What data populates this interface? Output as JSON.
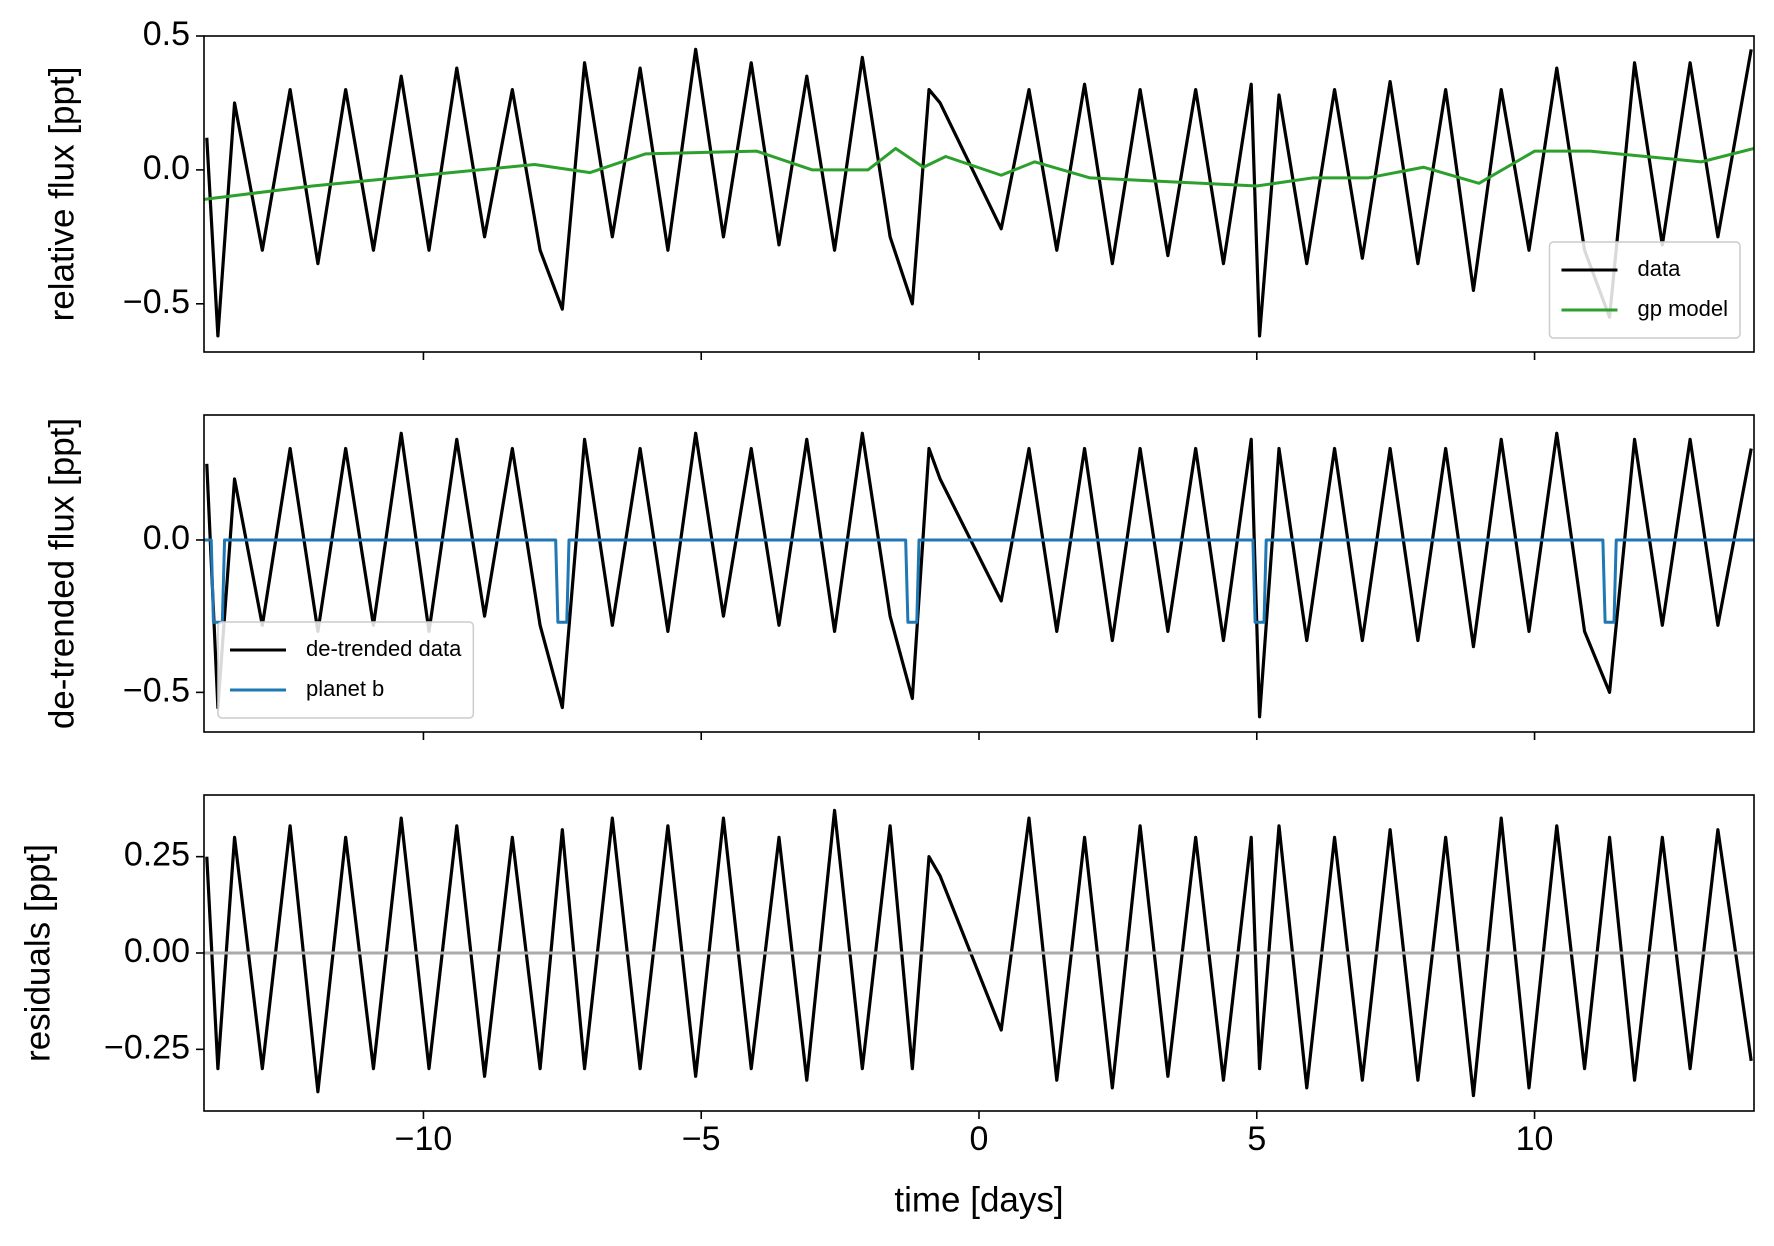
{
  "chart_data": [
    {
      "type": "line",
      "ylabel": "relative flux [ppt]",
      "xlim": [
        -13.95,
        13.95
      ],
      "ylim": [
        -0.68,
        0.5
      ],
      "yticks": [
        {
          "value": -0.5,
          "label": "−0.5"
        },
        {
          "value": 0,
          "label": "0.0"
        },
        0.5
      ],
      "legend": "lower right",
      "series": [
        {
          "name": "data",
          "color": "#000000",
          "x": [
            -13.9,
            -13.7,
            -13.4,
            -12.9,
            -12.4,
            -11.9,
            -11.4,
            -10.9,
            -10.4,
            -9.9,
            -9.4,
            -8.9,
            -8.4,
            -7.9,
            -7.5,
            -7.1,
            -6.6,
            -6.1,
            -5.6,
            -5.1,
            -4.6,
            -4.1,
            -3.6,
            -3.1,
            -2.6,
            -2.1,
            -1.6,
            -1.2,
            -0.9,
            -0.7,
            0.4,
            0.9,
            1.4,
            1.9,
            2.4,
            2.9,
            3.4,
            3.9,
            4.4,
            4.9,
            5.05,
            5.4,
            5.9,
            6.4,
            6.9,
            7.4,
            7.9,
            8.4,
            8.9,
            9.4,
            9.9,
            10.4,
            10.9,
            11.35,
            11.8,
            12.3,
            12.8,
            13.3,
            13.9
          ],
          "values": [
            0.12,
            -0.62,
            0.25,
            -0.3,
            0.3,
            -0.35,
            0.3,
            -0.3,
            0.35,
            -0.3,
            0.38,
            -0.25,
            0.3,
            -0.3,
            -0.52,
            0.4,
            -0.25,
            0.38,
            -0.3,
            0.45,
            -0.25,
            0.4,
            -0.28,
            0.35,
            -0.3,
            0.42,
            -0.25,
            -0.5,
            0.3,
            0.25,
            -0.22,
            0.3,
            -0.3,
            0.32,
            -0.35,
            0.3,
            -0.32,
            0.3,
            -0.35,
            0.32,
            -0.62,
            0.28,
            -0.35,
            0.3,
            -0.33,
            0.33,
            -0.35,
            0.3,
            -0.45,
            0.3,
            -0.3,
            0.38,
            -0.3,
            -0.55,
            0.4,
            -0.28,
            0.4,
            -0.25,
            0.45
          ]
        },
        {
          "name": "gp model",
          "color": "#2ca02c",
          "x": [
            -13.95,
            -12,
            -10,
            -8,
            -7,
            -6,
            -4,
            -3,
            -2,
            -1.5,
            -1,
            -0.6,
            0.4,
            1,
            2,
            4,
            5,
            6,
            7,
            8,
            9,
            10,
            11,
            12,
            13,
            13.95
          ],
          "values": [
            -0.11,
            -0.06,
            -0.02,
            0.02,
            -0.01,
            0.06,
            0.07,
            0.0,
            0.0,
            0.08,
            0.01,
            0.05,
            -0.02,
            0.03,
            -0.03,
            -0.05,
            -0.06,
            -0.03,
            -0.03,
            0.01,
            -0.05,
            0.07,
            0.07,
            0.05,
            0.03,
            0.08
          ]
        }
      ]
    },
    {
      "type": "line",
      "ylabel": "de-trended flux [ppt]",
      "xlim": [
        -13.95,
        13.95
      ],
      "ylim": [
        -0.63,
        0.41
      ],
      "yticks": [
        {
          "value": -0.5,
          "label": "−0.5"
        },
        {
          "value": 0,
          "label": "0.0"
        }
      ],
      "legend": "lower left",
      "series": [
        {
          "name": "de-trended data",
          "color": "#000000",
          "x": [
            -13.9,
            -13.7,
            -13.4,
            -12.9,
            -12.4,
            -11.9,
            -11.4,
            -10.9,
            -10.4,
            -9.9,
            -9.4,
            -8.9,
            -8.4,
            -7.9,
            -7.5,
            -7.1,
            -6.6,
            -6.1,
            -5.6,
            -5.1,
            -4.6,
            -4.1,
            -3.6,
            -3.1,
            -2.6,
            -2.1,
            -1.6,
            -1.2,
            -0.9,
            -0.7,
            0.4,
            0.9,
            1.4,
            1.9,
            2.4,
            2.9,
            3.4,
            3.9,
            4.4,
            4.9,
            5.05,
            5.4,
            5.9,
            6.4,
            6.9,
            7.4,
            7.9,
            8.4,
            8.9,
            9.4,
            9.9,
            10.4,
            10.9,
            11.35,
            11.8,
            12.3,
            12.8,
            13.3,
            13.9
          ],
          "values": [
            0.25,
            -0.55,
            0.2,
            -0.28,
            0.3,
            -0.3,
            0.3,
            -0.28,
            0.35,
            -0.3,
            0.33,
            -0.25,
            0.3,
            -0.28,
            -0.55,
            0.33,
            -0.28,
            0.3,
            -0.3,
            0.35,
            -0.25,
            0.3,
            -0.28,
            0.33,
            -0.3,
            0.35,
            -0.25,
            -0.52,
            0.3,
            0.2,
            -0.2,
            0.3,
            -0.3,
            0.3,
            -0.33,
            0.3,
            -0.3,
            0.3,
            -0.33,
            0.33,
            -0.58,
            0.3,
            -0.33,
            0.3,
            -0.33,
            0.3,
            -0.33,
            0.3,
            -0.35,
            0.33,
            -0.3,
            0.35,
            -0.3,
            -0.5,
            0.33,
            -0.28,
            0.33,
            -0.28,
            0.3
          ]
        },
        {
          "name": "planet b",
          "color": "#1f77b4",
          "x": [
            -13.95,
            -13.82,
            -13.78,
            -13.62,
            -13.58,
            -7.62,
            -7.58,
            -7.42,
            -7.38,
            -1.32,
            -1.28,
            -1.12,
            -1.08,
            4.93,
            4.97,
            5.13,
            5.17,
            11.23,
            11.27,
            11.43,
            11.47,
            13.95
          ],
          "values": [
            0,
            0,
            -0.27,
            -0.27,
            0,
            0,
            -0.27,
            -0.27,
            0,
            0,
            -0.27,
            -0.27,
            0,
            0,
            -0.27,
            -0.27,
            0,
            0,
            -0.27,
            -0.27,
            0,
            0
          ]
        }
      ]
    },
    {
      "type": "line",
      "ylabel": "residuals [ppt]",
      "xlabel": "time [days]",
      "xlim": [
        -13.95,
        13.95
      ],
      "ylim": [
        -0.41,
        0.41
      ],
      "yticks": [
        {
          "value": -0.25,
          "label": "−0.25"
        },
        {
          "value": 0,
          "label": "0.00"
        },
        {
          "value": 0.25,
          "label": "0.25"
        }
      ],
      "xticks": [
        {
          "value": -10,
          "label": "−10"
        },
        {
          "value": -5,
          "label": "−5"
        },
        0,
        5,
        10
      ],
      "series": [
        {
          "color": "#000000",
          "x": [
            -13.9,
            -13.7,
            -13.4,
            -12.9,
            -12.4,
            -11.9,
            -11.4,
            -10.9,
            -10.4,
            -9.9,
            -9.4,
            -8.9,
            -8.4,
            -7.9,
            -7.5,
            -7.1,
            -6.6,
            -6.1,
            -5.6,
            -5.1,
            -4.6,
            -4.1,
            -3.6,
            -3.1,
            -2.6,
            -2.1,
            -1.6,
            -1.2,
            -0.9,
            -0.7,
            0.4,
            0.9,
            1.4,
            1.9,
            2.4,
            2.9,
            3.4,
            3.9,
            4.4,
            4.9,
            5.05,
            5.4,
            5.9,
            6.4,
            6.9,
            7.4,
            7.9,
            8.4,
            8.9,
            9.4,
            9.9,
            10.4,
            10.9,
            11.35,
            11.8,
            12.3,
            12.8,
            13.3,
            13.9
          ],
          "values": [
            0.25,
            -0.3,
            0.3,
            -0.3,
            0.33,
            -0.36,
            0.3,
            -0.3,
            0.35,
            -0.3,
            0.33,
            -0.32,
            0.3,
            -0.3,
            0.32,
            -0.3,
            0.35,
            -0.3,
            0.33,
            -0.32,
            0.35,
            -0.3,
            0.3,
            -0.33,
            0.37,
            -0.3,
            0.33,
            -0.3,
            0.25,
            0.2,
            -0.2,
            0.35,
            -0.33,
            0.3,
            -0.35,
            0.33,
            -0.32,
            0.3,
            -0.33,
            0.3,
            -0.3,
            0.33,
            -0.35,
            0.3,
            -0.33,
            0.32,
            -0.33,
            0.3,
            -0.37,
            0.35,
            -0.35,
            0.33,
            -0.3,
            0.3,
            -0.33,
            0.3,
            -0.3,
            0.32,
            -0.28
          ]
        },
        {
          "color": "#aaaaaa",
          "x": [
            -13.95,
            13.95
          ],
          "values": [
            0,
            0
          ]
        }
      ]
    }
  ]
}
